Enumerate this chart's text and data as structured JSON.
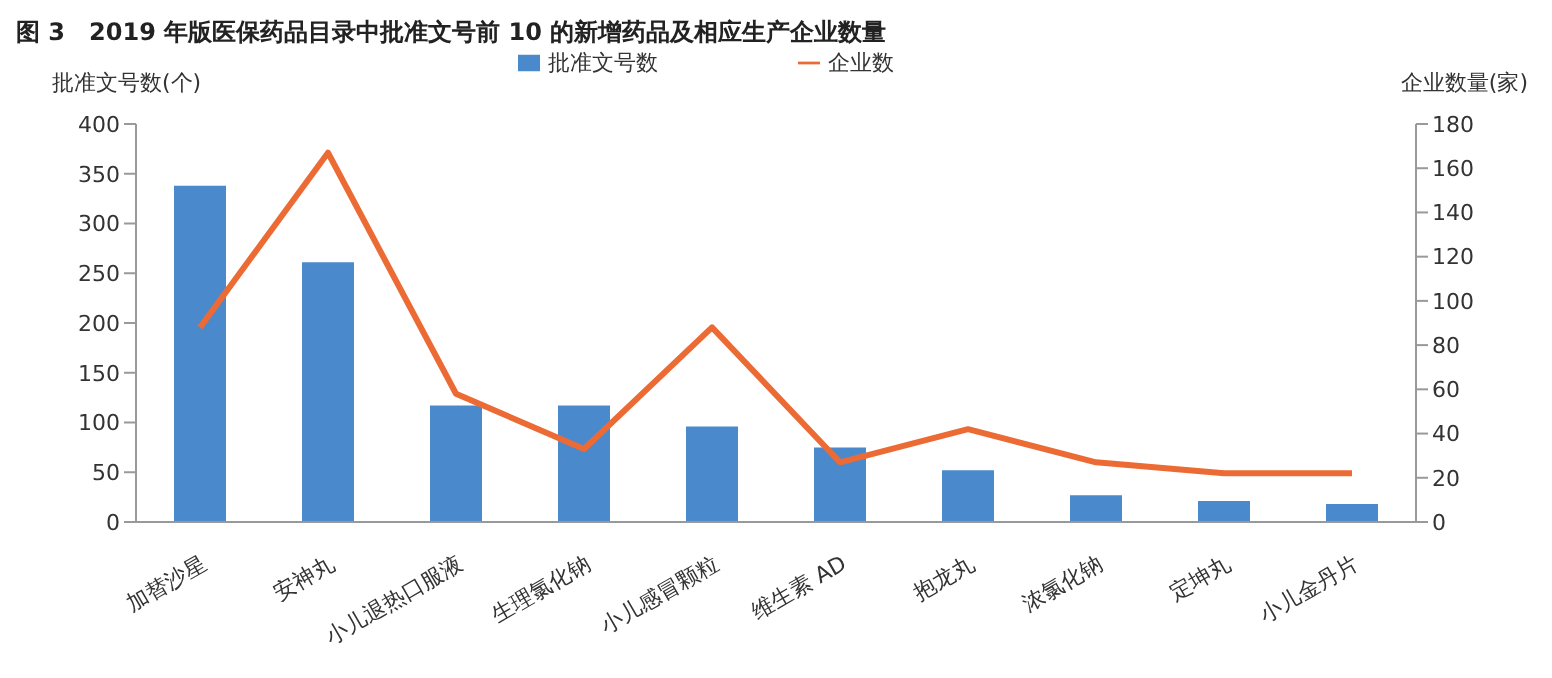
{
  "chart_data": {
    "type": "bar",
    "title": "图 3　2019 年版医保药品目录中批准文号前 10 的新增药品及相应生产企业数量",
    "ylabel": "批准文号数(个)",
    "y2label": "企业数量(家)",
    "categories": [
      "加替沙星",
      "安神丸",
      "小儿退热口服液",
      "生理氯化钠",
      "小儿感冒颗粒",
      "维生素 AD",
      "抱龙丸",
      "浓氯化钠",
      "定坤丸",
      "小儿金丹片"
    ],
    "series": [
      {
        "name": "批准文号数",
        "color": "#4a89cc",
        "values": [
          338,
          261,
          117,
          117,
          96,
          75,
          52,
          27,
          21,
          18
        ]
      },
      {
        "name": "企业数",
        "type": "line",
        "axis": "y2",
        "color": "#ec6b35",
        "values": [
          88,
          167,
          58,
          33,
          88,
          27,
          42,
          27,
          22,
          22
        ]
      }
    ],
    "ylim": [
      0,
      400
    ],
    "yticks": [
      0,
      50,
      100,
      150,
      200,
      250,
      300,
      350,
      400
    ],
    "y2lim": [
      0,
      180
    ],
    "y2ticks": [
      0,
      20,
      40,
      60,
      80,
      100,
      120,
      140,
      160,
      180
    ],
    "grid": false,
    "legend": "top",
    "marker": "none"
  }
}
